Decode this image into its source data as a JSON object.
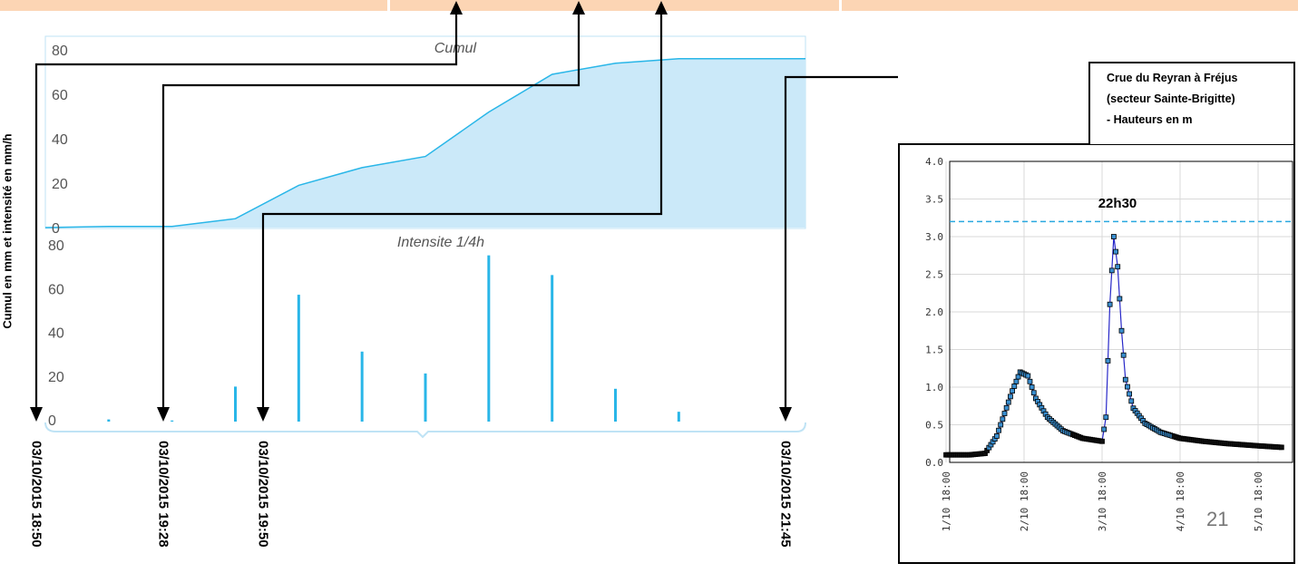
{
  "colors": {
    "band": "#fcd5b4",
    "rain_fill": "#cbe9f9",
    "rain_line": "#29b6e8",
    "arrow": "#000000",
    "flood_line": "#2727c8",
    "flood_marker": "#3a8fd0",
    "threshold_line": "#29a8e0"
  },
  "y_axis_label": "Cumul en mm et intensité en mm/h",
  "time_labels": [
    "03/10/2015 18:50",
    "03/10/2015 19:28",
    "03/10/2015 19:50",
    "03/10/2015 21:45"
  ],
  "right_panel": {
    "title_lines": [
      "Crue du Reyran à Fréjus",
      "(secteur Sainte-Brigitte)",
      "- Hauteurs en m"
    ],
    "peak_label": "22h30",
    "page_number": "21"
  },
  "chart_data": [
    {
      "type": "area",
      "title": "Cumul",
      "ylim": [
        0,
        80
      ],
      "yticks": [
        "0",
        "20",
        "40",
        "60",
        "80"
      ],
      "x": [
        0,
        1,
        2,
        3,
        4,
        5,
        6,
        7,
        8,
        9,
        10,
        11,
        12
      ],
      "values": [
        0,
        0.5,
        0.5,
        4,
        19,
        27,
        32,
        52,
        69,
        74,
        76,
        76,
        76
      ]
    },
    {
      "type": "bar",
      "title": "Intensite 1/4h",
      "ylim": [
        0,
        80
      ],
      "yticks": [
        "0",
        "20",
        "40",
        "60",
        "80"
      ],
      "x": [
        1,
        2,
        3,
        4,
        5,
        6,
        7,
        8,
        9,
        10
      ],
      "values": [
        1,
        0.5,
        16,
        58,
        32,
        22,
        76,
        67,
        15,
        4.5
      ]
    },
    {
      "type": "line",
      "title": "Crue du Reyran à Fréjus (secteur Sainte-Brigitte) - Hauteurs en m",
      "ylabel": "Hauteurs en m",
      "ylim": [
        0,
        4
      ],
      "yticks": [
        "0.0",
        "0.5",
        "1.0",
        "1.5",
        "2.0",
        "2.5",
        "3.0",
        "3.5",
        "4.0"
      ],
      "xticks": [
        "1/10 18:00",
        "2/10 18:00",
        "3/10 18:00",
        "4/10 18:00",
        "5/10 18:00"
      ],
      "threshold": 3.2,
      "x": [
        0,
        0.3,
        0.5,
        0.65,
        0.75,
        0.85,
        0.95,
        1.05,
        1.15,
        1.3,
        1.5,
        1.75,
        2.0,
        2.05,
        2.1,
        2.15,
        2.2,
        2.25,
        2.3,
        2.4,
        2.55,
        2.75,
        3.0,
        3.3,
        3.6,
        4.0,
        4.3
      ],
      "values": [
        0.1,
        0.1,
        0.12,
        0.35,
        0.65,
        0.95,
        1.2,
        1.15,
        0.85,
        0.6,
        0.42,
        0.32,
        0.28,
        0.6,
        2.1,
        3.0,
        2.6,
        1.75,
        1.1,
        0.72,
        0.52,
        0.4,
        0.32,
        0.28,
        0.25,
        0.22,
        0.2
      ]
    }
  ]
}
